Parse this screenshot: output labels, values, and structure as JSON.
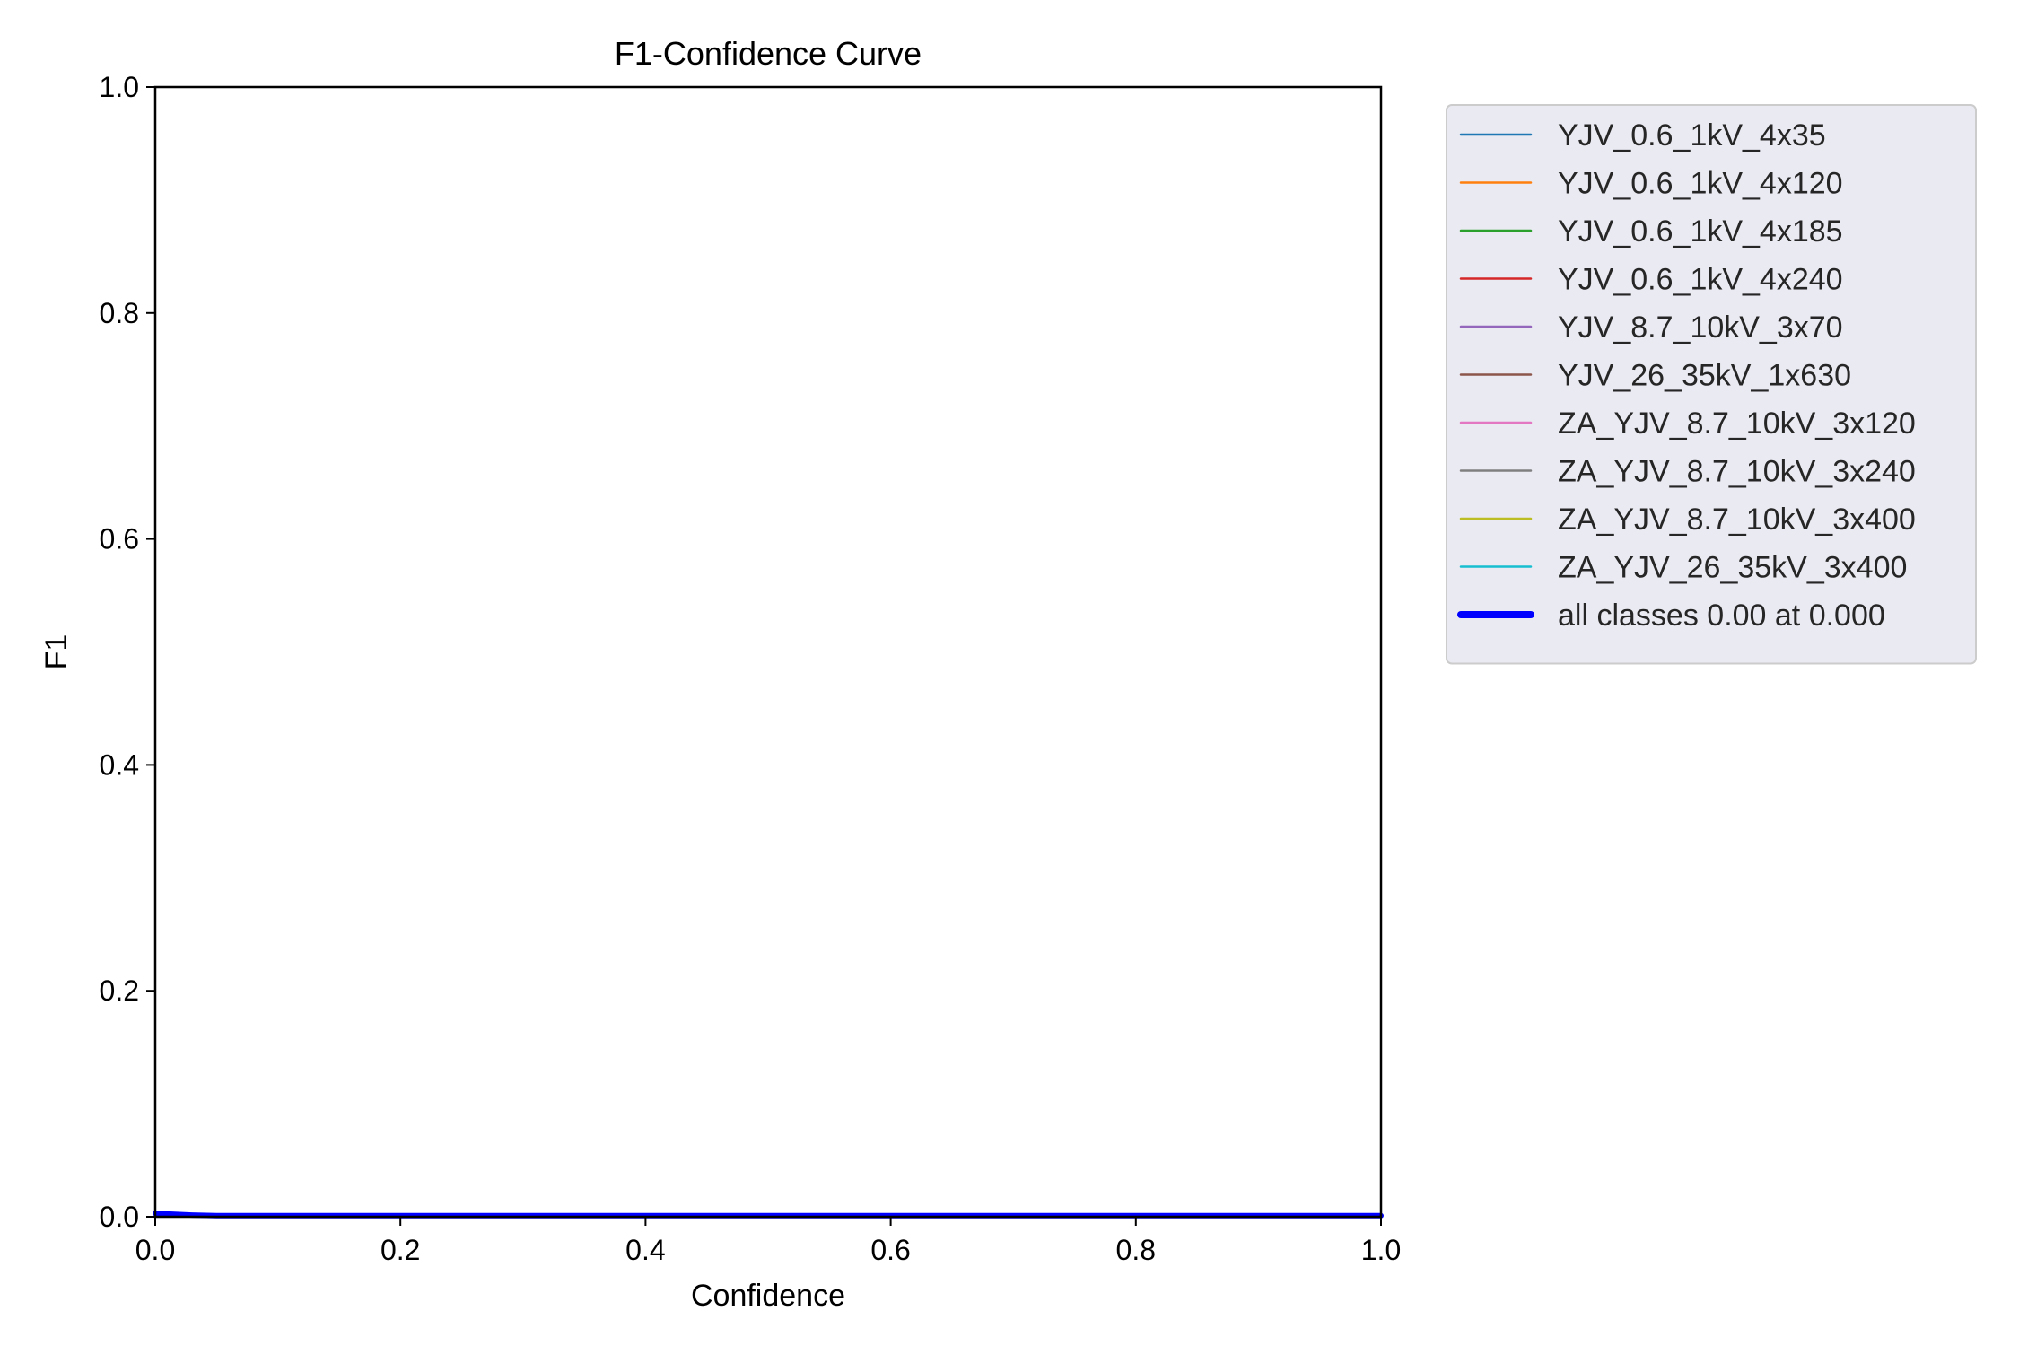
{
  "chart_data": {
    "type": "line",
    "title": "F1-Confidence Curve",
    "xlabel": "Confidence",
    "ylabel": "F1",
    "xlim": [
      0.0,
      1.0
    ],
    "ylim": [
      0.0,
      1.0
    ],
    "xticks": [
      "0.0",
      "0.2",
      "0.4",
      "0.6",
      "0.8",
      "1.0"
    ],
    "yticks": [
      "0.0",
      "0.2",
      "0.4",
      "0.6",
      "0.8",
      "1.0"
    ],
    "grid": false,
    "legend_position": "outside-right-top",
    "series": [
      {
        "name": "YJV_0.6_1kV_4x35",
        "color": "#1f77b4",
        "linewidth": "thin",
        "x": [
          0.0,
          1.0
        ],
        "y": [
          0.0,
          0.0
        ]
      },
      {
        "name": "YJV_0.6_1kV_4x120",
        "color": "#ff7f0e",
        "linewidth": "thin",
        "x": [
          0.0,
          1.0
        ],
        "y": [
          0.0,
          0.0
        ]
      },
      {
        "name": "YJV_0.6_1kV_4x185",
        "color": "#2ca02c",
        "linewidth": "thin",
        "x": [
          0.0,
          1.0
        ],
        "y": [
          0.0,
          0.0
        ]
      },
      {
        "name": "YJV_0.6_1kV_4x240",
        "color": "#d62728",
        "linewidth": "thin",
        "x": [
          0.0,
          1.0
        ],
        "y": [
          0.0,
          0.0
        ]
      },
      {
        "name": "YJV_8.7_10kV_3x70",
        "color": "#9467bd",
        "linewidth": "thin",
        "x": [
          0.0,
          1.0
        ],
        "y": [
          0.0,
          0.0
        ]
      },
      {
        "name": "YJV_26_35kV_1x630",
        "color": "#8c564b",
        "linewidth": "thin",
        "x": [
          0.0,
          1.0
        ],
        "y": [
          0.0,
          0.0
        ]
      },
      {
        "name": "ZA_YJV_8.7_10kV_3x120",
        "color": "#e377c2",
        "linewidth": "thin",
        "x": [
          0.0,
          1.0
        ],
        "y": [
          0.0,
          0.0
        ]
      },
      {
        "name": "ZA_YJV_8.7_10kV_3x240",
        "color": "#7f7f7f",
        "linewidth": "thin",
        "x": [
          0.0,
          1.0
        ],
        "y": [
          0.0,
          0.0
        ]
      },
      {
        "name": "ZA_YJV_8.7_10kV_3x400",
        "color": "#bcbd22",
        "linewidth": "thin",
        "x": [
          0.0,
          1.0
        ],
        "y": [
          0.0,
          0.0
        ]
      },
      {
        "name": "ZA_YJV_26_35kV_3x400",
        "color": "#17becf",
        "linewidth": "thin",
        "x": [
          0.0,
          1.0
        ],
        "y": [
          0.0,
          0.0
        ]
      },
      {
        "name": "all classes 0.00 at 0.000",
        "color": "#0000ff",
        "linewidth": "thick",
        "x": [
          0.0,
          0.01,
          0.03,
          0.05,
          1.0
        ],
        "y": [
          0.003,
          0.0025,
          0.0015,
          0.001,
          0.001
        ]
      }
    ]
  }
}
